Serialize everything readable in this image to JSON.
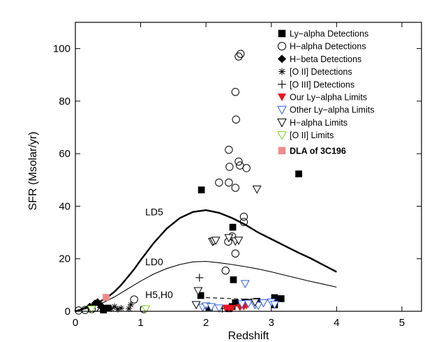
{
  "chart_data": {
    "type": "scatter",
    "xlabel": "Redshift",
    "ylabel": "SFR (Msolar/yr)",
    "xlim": [
      0,
      5.3
    ],
    "ylim": [
      0,
      110
    ],
    "xticks": [
      0,
      1,
      2,
      3,
      4,
      5
    ],
    "yticks": [
      0,
      20,
      40,
      60,
      80,
      100
    ],
    "legend_position": "top-right",
    "curves": [
      {
        "label": "LD5",
        "width": "thick",
        "style": "solid",
        "points": [
          [
            0,
            0
          ],
          [
            0.1,
            0.8
          ],
          [
            0.2,
            1.8
          ],
          [
            0.3,
            2.8
          ],
          [
            0.4,
            4.0
          ],
          [
            0.5,
            5.5
          ],
          [
            0.6,
            7.5
          ],
          [
            0.7,
            10
          ],
          [
            0.8,
            13
          ],
          [
            0.9,
            16
          ],
          [
            1.0,
            19.5
          ],
          [
            1.2,
            26
          ],
          [
            1.4,
            31.5
          ],
          [
            1.6,
            35.5
          ],
          [
            1.8,
            37.8
          ],
          [
            2.0,
            38.5
          ],
          [
            2.2,
            37.5
          ],
          [
            2.4,
            35.5
          ],
          [
            2.6,
            33
          ],
          [
            2.8,
            30
          ],
          [
            3.0,
            27.5
          ],
          [
            3.2,
            25
          ],
          [
            3.4,
            22.5
          ],
          [
            3.6,
            20.2
          ],
          [
            3.8,
            17.6
          ],
          [
            4.0,
            15
          ]
        ]
      },
      {
        "label": "LD0",
        "width": "thin",
        "style": "solid",
        "points": [
          [
            0,
            0
          ],
          [
            0.2,
            1.2
          ],
          [
            0.4,
            3
          ],
          [
            0.6,
            5.5
          ],
          [
            0.8,
            8.5
          ],
          [
            1.0,
            11.5
          ],
          [
            1.2,
            14.2
          ],
          [
            1.4,
            16.3
          ],
          [
            1.6,
            17.8
          ],
          [
            1.8,
            18.8
          ],
          [
            2.0,
            19
          ],
          [
            2.2,
            18.5
          ],
          [
            2.4,
            17.8
          ],
          [
            2.6,
            17
          ],
          [
            2.8,
            16.1
          ],
          [
            3.0,
            15
          ],
          [
            3.2,
            13.8
          ],
          [
            3.4,
            12.6
          ],
          [
            3.6,
            11.4
          ],
          [
            3.8,
            10.3
          ],
          [
            4.0,
            9.2
          ]
        ]
      },
      {
        "label": "H5,H0",
        "width": "thin",
        "style": "dashed",
        "points": [
          [
            2.0,
            5.2
          ],
          [
            2.5,
            4.7
          ],
          [
            3.0,
            4.2
          ]
        ]
      }
    ],
    "series": [
      {
        "name": "Ly−alpha Detections",
        "marker": "square-filled",
        "color": "#000000",
        "points": [
          [
            0.43,
            0.5
          ],
          [
            0.5,
            1.2
          ],
          [
            1.93,
            46.2
          ],
          [
            1.92,
            6.0
          ],
          [
            2.05,
            1.5
          ],
          [
            2.35,
            1.0
          ],
          [
            2.4,
            1.8
          ],
          [
            2.41,
            32.0
          ],
          [
            2.42,
            12.0
          ],
          [
            2.45,
            3.2
          ],
          [
            2.6,
            3.5
          ],
          [
            2.78,
            3.8
          ],
          [
            3.05,
            5.2
          ],
          [
            3.15,
            4.8
          ],
          [
            3.42,
            52.3
          ],
          [
            3.05,
            2.5
          ]
        ]
      },
      {
        "name": "H−alpha Detections",
        "marker": "circle-open",
        "color": "#000000",
        "points": [
          [
            0.05,
            0.3
          ],
          [
            0.15,
            0.5
          ],
          [
            0.25,
            0.8
          ],
          [
            0.3,
            1.3
          ],
          [
            0.9,
            4.5
          ],
          [
            1.05,
            0.8
          ],
          [
            2.2,
            49.0
          ],
          [
            2.35,
            61.5
          ],
          [
            2.36,
            55.0
          ],
          [
            2.35,
            49.0
          ],
          [
            2.3,
            15.5
          ],
          [
            2.34,
            26.5
          ],
          [
            2.4,
            28.5
          ],
          [
            2.45,
            22.0
          ],
          [
            2.45,
            47.0
          ],
          [
            2.5,
            57.0
          ],
          [
            2.52,
            55.5
          ],
          [
            2.58,
            36.0
          ],
          [
            2.58,
            34.0
          ],
          [
            2.46,
            73.0
          ],
          [
            2.45,
            83.5
          ],
          [
            2.5,
            97.0
          ],
          [
            2.53,
            98.0
          ],
          [
            2.62,
            54.5
          ]
        ]
      },
      {
        "name": "H−beta Detections",
        "marker": "diamond-filled",
        "color": "#000000",
        "points": [
          [
            0.22,
            1.8
          ],
          [
            0.3,
            3.0
          ],
          [
            0.34,
            3.5
          ],
          [
            0.37,
            2.7
          ],
          [
            0.4,
            2.0
          ]
        ]
      },
      {
        "name": "[O II] Detections",
        "marker": "asterisk",
        "color": "#000000",
        "points": [
          [
            0.38,
            1.5
          ],
          [
            0.55,
            1.0
          ],
          [
            0.6,
            1.8
          ],
          [
            0.65,
            0.8
          ],
          [
            0.7,
            1.2
          ],
          [
            0.82,
            1.0
          ],
          [
            0.85,
            2.5
          ]
        ]
      },
      {
        "name": "[O III] Detections",
        "marker": "plus",
        "color": "#000000",
        "points": [
          [
            1.9,
            12.8
          ],
          [
            2.25,
            1.0
          ]
        ]
      },
      {
        "name": "Our Ly−alpha Limits",
        "marker": "triangle-down-filled",
        "color": "#e8141e",
        "points": [
          [
            2.3,
            1.3
          ],
          [
            2.35,
            1.0
          ],
          [
            2.4,
            1.2
          ],
          [
            2.52,
            1.5
          ],
          [
            2.58,
            1.8
          ],
          [
            2.62,
            2.2
          ]
        ]
      },
      {
        "name": "Other Ly−alpha Limits",
        "marker": "triangle-down-open",
        "color": "#2d5fe0",
        "points": [
          [
            1.95,
            1.5
          ],
          [
            2.0,
            2.0
          ],
          [
            2.08,
            1.7
          ],
          [
            2.2,
            1.2
          ],
          [
            2.6,
            10.5
          ],
          [
            2.55,
            2.8
          ],
          [
            2.65,
            3.0
          ],
          [
            2.75,
            2.5
          ],
          [
            2.8,
            2.2
          ],
          [
            2.88,
            3.2
          ],
          [
            3.0,
            3.5
          ],
          [
            3.05,
            2.6
          ]
        ]
      },
      {
        "name": "H−alpha Limits",
        "marker": "triangle-down-open",
        "color": "#000000",
        "points": [
          [
            1.88,
            7.8
          ],
          [
            1.85,
            2.5
          ],
          [
            2.1,
            26.5
          ],
          [
            2.12,
            26.7
          ],
          [
            2.15,
            27.0
          ],
          [
            2.35,
            28.0
          ],
          [
            2.45,
            26.7
          ],
          [
            2.5,
            27.0
          ],
          [
            2.78,
            46.5
          ],
          [
            2.75,
            3.5
          ]
        ]
      },
      {
        "name": "[O II] Limits",
        "marker": "triangle-down-open",
        "color": "#7ed321",
        "points": [
          [
            0.25,
            0.8
          ],
          [
            1.08,
            0.9
          ]
        ]
      },
      {
        "name": "DLA of 3C196",
        "marker": "square-filled",
        "color": "#f08a8a",
        "points": [
          [
            0.47,
            5.3
          ]
        ]
      }
    ]
  }
}
